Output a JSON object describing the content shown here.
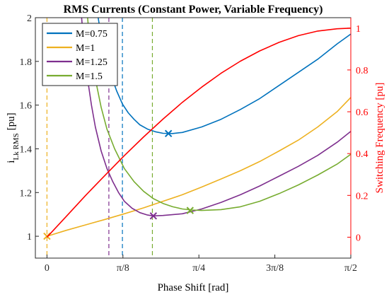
{
  "chart_data": {
    "type": "line",
    "title": "RMS Currents (Constant Power, Variable Frequency)",
    "xlabel": "Phase Shift [rad]",
    "ylabel_left_main": "i",
    "ylabel_left_sub": "Lk RMS",
    "ylabel_left_unit": "[pu]",
    "ylabel_right": "Switching Frequency [pu]",
    "xlim": [
      -0.06,
      1.5708
    ],
    "ylim_left": [
      0.9,
      2.0
    ],
    "ylim_right": [
      -0.1,
      1.05
    ],
    "x_ticks": [
      {
        "value": 0,
        "label": "0"
      },
      {
        "value": 0.3927,
        "label": "π/8"
      },
      {
        "value": 0.7854,
        "label": "π/4"
      },
      {
        "value": 1.1781,
        "label": "3π/8"
      },
      {
        "value": 1.5708,
        "label": "π/2"
      }
    ],
    "y_left_ticks": [
      {
        "value": 1.0,
        "label": "1"
      },
      {
        "value": 1.2,
        "label": "1.2"
      },
      {
        "value": 1.4,
        "label": "1.4"
      },
      {
        "value": 1.6,
        "label": "1.6"
      },
      {
        "value": 1.8,
        "label": "1.8"
      },
      {
        "value": 2.0,
        "label": "2"
      }
    ],
    "y_right_ticks": [
      {
        "value": 0,
        "label": "0"
      },
      {
        "value": 0.2,
        "label": "0.2"
      },
      {
        "value": 0.4,
        "label": "0.4"
      },
      {
        "value": 0.6,
        "label": "0.6"
      },
      {
        "value": 0.8,
        "label": "0.8"
      },
      {
        "value": 1.0,
        "label": "1"
      }
    ],
    "legend_position": "top-left",
    "grid": false,
    "series": [
      {
        "name": "M=0.75",
        "color": "#0072BD",
        "axis": "left",
        "x": [
          0.23,
          0.25,
          0.27,
          0.3,
          0.33,
          0.36,
          0.39,
          0.42,
          0.45,
          0.48,
          0.52,
          0.56,
          0.6,
          0.65,
          0.7,
          0.8,
          0.9,
          1.0,
          1.1,
          1.2,
          1.3,
          1.4,
          1.5,
          1.5708
        ],
        "y": [
          2.23,
          2.08,
          1.97,
          1.84,
          1.74,
          1.665,
          1.605,
          1.565,
          1.535,
          1.51,
          1.49,
          1.478,
          1.471,
          1.47,
          1.475,
          1.5,
          1.535,
          1.58,
          1.63,
          1.69,
          1.75,
          1.81,
          1.88,
          1.925
        ],
        "min_marker": {
          "x": 0.628,
          "y": 1.47
        }
      },
      {
        "name": "M=1",
        "color": "#EDB120",
        "axis": "left",
        "x": [
          0,
          0.1,
          0.2,
          0.3,
          0.4,
          0.5,
          0.6,
          0.7,
          0.8,
          0.9,
          1.0,
          1.1,
          1.2,
          1.3,
          1.4,
          1.5,
          1.5708
        ],
        "y": [
          1.0,
          1.027,
          1.052,
          1.077,
          1.103,
          1.13,
          1.16,
          1.19,
          1.225,
          1.262,
          1.3,
          1.342,
          1.39,
          1.44,
          1.5,
          1.57,
          1.635
        ],
        "min_marker": {
          "x": 0,
          "y": 1.0
        }
      },
      {
        "name": "M=1.25",
        "color": "#7E2F8E",
        "axis": "left",
        "x": [
          0.17,
          0.19,
          0.21,
          0.23,
          0.25,
          0.28,
          0.31,
          0.34,
          0.37,
          0.4,
          0.44,
          0.48,
          0.52,
          0.55,
          0.6,
          0.7,
          0.8,
          0.9,
          1.0,
          1.1,
          1.2,
          1.3,
          1.4,
          1.5,
          1.5708
        ],
        "y": [
          2.1,
          1.88,
          1.72,
          1.6,
          1.5,
          1.39,
          1.31,
          1.25,
          1.2,
          1.16,
          1.128,
          1.108,
          1.097,
          1.093,
          1.095,
          1.103,
          1.125,
          1.155,
          1.19,
          1.23,
          1.275,
          1.32,
          1.37,
          1.43,
          1.48
        ],
        "min_marker": {
          "x": 0.55,
          "y": 1.093
        }
      },
      {
        "name": "M=1.5",
        "color": "#77AC30",
        "axis": "left",
        "x": [
          0.2,
          0.22,
          0.25,
          0.28,
          0.31,
          0.35,
          0.4,
          0.45,
          0.5,
          0.55,
          0.6,
          0.65,
          0.7,
          0.75,
          0.8,
          0.9,
          1.0,
          1.1,
          1.2,
          1.3,
          1.4,
          1.5,
          1.5708
        ],
        "y": [
          2.1,
          1.9,
          1.72,
          1.59,
          1.49,
          1.4,
          1.31,
          1.25,
          1.205,
          1.172,
          1.15,
          1.135,
          1.125,
          1.12,
          1.118,
          1.122,
          1.135,
          1.16,
          1.195,
          1.235,
          1.28,
          1.33,
          1.375
        ],
        "min_marker": {
          "x": 0.74,
          "y": 1.118
        }
      },
      {
        "name": "",
        "color": "#FF0000",
        "axis": "right",
        "x": [
          0,
          0.1,
          0.2,
          0.3,
          0.4,
          0.5,
          0.6,
          0.7,
          0.8,
          0.9,
          1.0,
          1.1,
          1.2,
          1.3,
          1.4,
          1.5,
          1.5708
        ],
        "y": [
          0.0,
          0.1,
          0.2,
          0.296,
          0.39,
          0.48,
          0.565,
          0.645,
          0.718,
          0.784,
          0.842,
          0.891,
          0.932,
          0.964,
          0.986,
          0.997,
          1.0
        ]
      }
    ],
    "vertical_lines": [
      {
        "x": 0,
        "color": "#EDB120"
      },
      {
        "x": 0.32,
        "color": "#7E2F8E"
      },
      {
        "x": 0.39,
        "color": "#0072BD"
      },
      {
        "x": 0.545,
        "color": "#77AC30"
      }
    ],
    "left_axis_color": "#000000",
    "right_axis_color": "#FF0000"
  }
}
